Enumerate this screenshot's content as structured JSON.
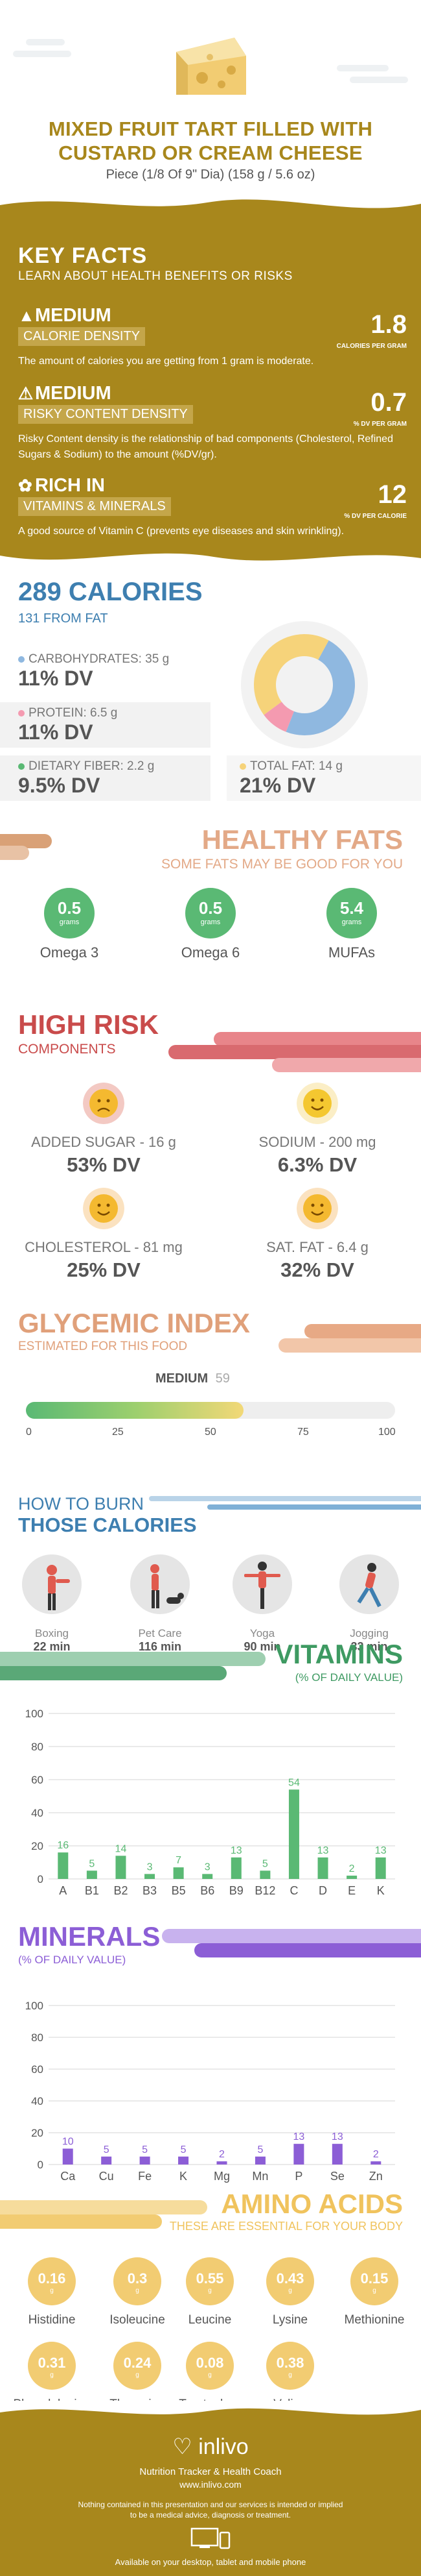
{
  "header": {
    "title_line1": "MIXED FRUIT TART FILLED WITH",
    "title_line2": "CUSTARD OR CREAM CHEESE",
    "serving": "Piece (1/8 Of 9\" Dia) (158 g / 5.6 oz)"
  },
  "key_facts": {
    "title": "KEY FACTS",
    "subtitle": "LEARN ABOUT HEALTH BENEFITS OR RISKS",
    "items": [
      {
        "level": "MEDIUM",
        "category": "CALORIE DENSITY",
        "value": "1.8",
        "unit": "CALORIES PER GRAM",
        "description": "The amount of calories you are getting from 1 gram is moderate."
      },
      {
        "level": "MEDIUM",
        "category": "RISKY CONTENT DENSITY",
        "value": "0.7",
        "unit": "% DV PER GRAM",
        "description": "Risky Content density is the relationship of bad components (Cholesterol, Refined Sugars & Sodium) to the amount (%DV/gr)."
      },
      {
        "level": "RICH  IN",
        "category": "VITAMINS & MINERALS",
        "value": "12",
        "unit": "% DV PER CALORIE",
        "description": "A good source of Vitamin C (prevents eye diseases and skin wrinkling)."
      }
    ]
  },
  "calories": {
    "title": "289 CALORIES",
    "from_fat": "131 FROM FAT",
    "carbs_label": "CARBOHYDRATES: 35 g",
    "carbs_dv": "11% DV",
    "protein_label": "PROTEIN: 6.5 g",
    "protein_dv": "11% DV",
    "fiber_label": "DIETARY FIBER: 2.2 g",
    "fiber_dv": "9.5% DV",
    "fat_label": "TOTAL FAT: 14 g",
    "fat_dv": "21% DV",
    "colors": {
      "carbs": "#8fb8e0",
      "protein": "#f49ab0",
      "fat": "#f6d37a",
      "fiber": "#5ab974"
    }
  },
  "healthy_fats": {
    "title": "HEALTHY FATS",
    "subtitle": "SOME FATS MAY BE GOOD FOR YOU",
    "items": [
      {
        "value": "0.5",
        "unit": "grams",
        "name": "Omega 3"
      },
      {
        "value": "0.5",
        "unit": "grams",
        "name": "Omega 6"
      },
      {
        "value": "5.4",
        "unit": "grams",
        "name": "MUFAs"
      }
    ]
  },
  "high_risk": {
    "title": "HIGH RISK",
    "subtitle": "COMPONENTS",
    "items": [
      {
        "label": "ADDED SUGAR - 16 g",
        "dv": "53% DV",
        "face": "sad"
      },
      {
        "label": "SODIUM - 200 mg",
        "dv": "6.3% DV",
        "face": "happy"
      },
      {
        "label": "CHOLESTEROL - 81 mg",
        "dv": "25% DV",
        "face": "happy"
      },
      {
        "label": "SAT. FAT - 6.4 g",
        "dv": "32% DV",
        "face": "happy"
      }
    ]
  },
  "glycemic": {
    "title": "GLYCEMIC INDEX",
    "subtitle": "ESTIMATED FOR THIS FOOD",
    "level": "MEDIUM",
    "value": "59",
    "ticks": [
      "0",
      "25",
      "50",
      "75",
      "100"
    ]
  },
  "burn": {
    "title1": "HOW TO BURN",
    "title2": "THOSE CALORIES",
    "items": [
      {
        "name": "Boxing",
        "minutes": "22 min"
      },
      {
        "name": "Pet Care",
        "minutes": "116 min"
      },
      {
        "name": "Yoga",
        "minutes": "90 min"
      },
      {
        "name": "Jogging",
        "minutes": "33 min"
      }
    ]
  },
  "vitamins": {
    "title": "VITAMINS",
    "subtitle": "(% OF DAILY VALUE)",
    "chart_data": {
      "type": "bar",
      "categories": [
        "A",
        "B1",
        "B2",
        "B3",
        "B5",
        "B6",
        "B9",
        "B12",
        "C",
        "D",
        "E",
        "K"
      ],
      "values": [
        16,
        5,
        14,
        3,
        7,
        3,
        13,
        5,
        54,
        13,
        2,
        13
      ],
      "yticks": [
        "0",
        "20",
        "40",
        "60",
        "80",
        "100"
      ],
      "ylim": [
        0,
        100
      ],
      "color": "#5ab974"
    }
  },
  "minerals": {
    "title": "MINERALS",
    "subtitle": "(% OF DAILY VALUE)",
    "chart_data": {
      "type": "bar",
      "categories": [
        "Ca",
        "Cu",
        "Fe",
        "K",
        "Mg",
        "Mn",
        "P",
        "Se",
        "Zn"
      ],
      "values": [
        10,
        5,
        5,
        5,
        2,
        5,
        13,
        13,
        2
      ],
      "yticks": [
        "0",
        "20",
        "40",
        "60",
        "80",
        "100"
      ],
      "ylim": [
        0,
        100
      ],
      "color": "#8c5ed6"
    }
  },
  "amino": {
    "title": "AMINO ACIDS",
    "subtitle": "THESE ARE ESSENTIAL FOR YOUR BODY",
    "items": [
      {
        "value": "0.16",
        "unit": "g",
        "name": "Histidine"
      },
      {
        "value": "0.3",
        "unit": "g",
        "name": "Isoleucine"
      },
      {
        "value": "0.55",
        "unit": "g",
        "name": "Leucine"
      },
      {
        "value": "0.43",
        "unit": "g",
        "name": "Lysine"
      },
      {
        "value": "0.15",
        "unit": "g",
        "name": "Methionine"
      },
      {
        "value": "0.31",
        "unit": "g",
        "name": "Phenylalanine"
      },
      {
        "value": "0.24",
        "unit": "g",
        "name": "Threonine"
      },
      {
        "value": "0.08",
        "unit": "g",
        "name": "Tryptophan"
      },
      {
        "value": "0.38",
        "unit": "g",
        "name": "Valine"
      }
    ]
  },
  "footer": {
    "brand": "inlivo",
    "tagline": "Nutrition Tracker & Health Coach",
    "url": "www.inlivo.com",
    "disclaimer1": "Nothing contained in this presentation and our services is intended or implied",
    "disclaimer2": "to be a medical advice, diagnosis or treatment.",
    "available": "Available on your desktop, tablet and mobile phone"
  }
}
